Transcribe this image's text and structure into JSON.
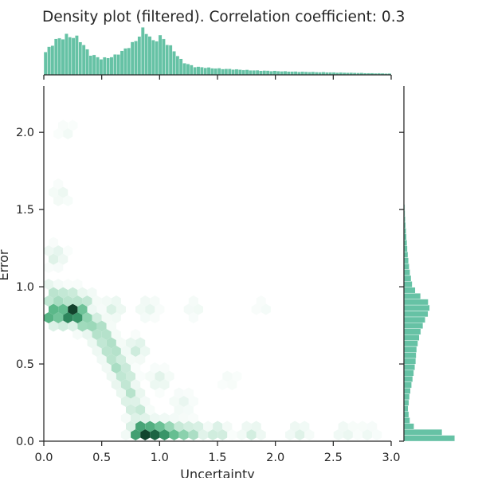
{
  "chart_data": {
    "type": "heatmap",
    "subtype": "hexbin joint plot with marginal histograms",
    "title": "Density plot (filtered). Correlation coefficient: 0.3",
    "xlabel": "Uncertainty",
    "ylabel": "Error",
    "xlim": [
      0.0,
      3.0
    ],
    "ylim": [
      0.0,
      2.3
    ],
    "xticks": [
      0.0,
      0.5,
      1.0,
      1.5,
      2.0,
      2.5,
      3.0
    ],
    "xtick_labels": [
      "0.0",
      "0.5",
      "1.0",
      "1.5",
      "2.0",
      "2.5",
      "3.0"
    ],
    "yticks": [
      0.0,
      0.5,
      1.0,
      1.5,
      2.0
    ],
    "ytick_labels": [
      "0.0",
      "0.5",
      "1.0",
      "1.5",
      "2.0"
    ],
    "grid": false,
    "colormap": [
      "#ffffff",
      "#e8f6ef",
      "#bfe6d2",
      "#8fd3b0",
      "#5cb98a",
      "#2f8a5f",
      "#175a3c",
      "#0a1f14"
    ],
    "bar_color": "#66c2a5",
    "hexbin": [
      {
        "x": 0.0,
        "y": 0.86,
        "v": 0.55
      },
      {
        "x": 0.05,
        "y": 0.82,
        "v": 0.65
      },
      {
        "x": 0.1,
        "y": 0.86,
        "v": 0.6
      },
      {
        "x": 0.1,
        "y": 0.82,
        "v": 0.6
      },
      {
        "x": 0.2,
        "y": 0.82,
        "v": 0.8
      },
      {
        "x": 0.25,
        "y": 0.84,
        "v": 0.95
      },
      {
        "x": 0.3,
        "y": 0.82,
        "v": 0.75
      },
      {
        "x": 0.35,
        "y": 0.78,
        "v": 0.5
      },
      {
        "x": 0.15,
        "y": 0.92,
        "v": 0.4
      },
      {
        "x": 0.05,
        "y": 0.95,
        "v": 0.35
      },
      {
        "x": 0.25,
        "y": 0.92,
        "v": 0.35
      },
      {
        "x": 0.35,
        "y": 0.9,
        "v": 0.3
      },
      {
        "x": 0.45,
        "y": 0.74,
        "v": 0.45
      },
      {
        "x": 0.5,
        "y": 0.68,
        "v": 0.4
      },
      {
        "x": 0.55,
        "y": 0.62,
        "v": 0.4
      },
      {
        "x": 0.6,
        "y": 0.56,
        "v": 0.38
      },
      {
        "x": 0.65,
        "y": 0.48,
        "v": 0.38
      },
      {
        "x": 0.7,
        "y": 0.4,
        "v": 0.35
      },
      {
        "x": 0.75,
        "y": 0.3,
        "v": 0.32
      },
      {
        "x": 0.8,
        "y": 0.2,
        "v": 0.3
      },
      {
        "x": 0.85,
        "y": 0.1,
        "v": 0.3
      },
      {
        "x": 0.85,
        "y": 0.05,
        "v": 1.0
      },
      {
        "x": 0.9,
        "y": 0.05,
        "v": 0.95
      },
      {
        "x": 0.95,
        "y": 0.05,
        "v": 0.85
      },
      {
        "x": 1.0,
        "y": 0.05,
        "v": 0.8
      },
      {
        "x": 1.05,
        "y": 0.05,
        "v": 0.7
      },
      {
        "x": 1.1,
        "y": 0.05,
        "v": 0.6
      },
      {
        "x": 1.2,
        "y": 0.05,
        "v": 0.45
      },
      {
        "x": 1.3,
        "y": 0.05,
        "v": 0.35
      },
      {
        "x": 1.5,
        "y": 0.05,
        "v": 0.28
      },
      {
        "x": 1.8,
        "y": 0.05,
        "v": 0.22
      },
      {
        "x": 2.2,
        "y": 0.05,
        "v": 0.18
      },
      {
        "x": 2.6,
        "y": 0.05,
        "v": 0.14
      },
      {
        "x": 2.8,
        "y": 0.05,
        "v": 0.1
      },
      {
        "x": 0.6,
        "y": 0.86,
        "v": 0.2
      },
      {
        "x": 0.9,
        "y": 0.86,
        "v": 0.15
      },
      {
        "x": 1.3,
        "y": 0.86,
        "v": 0.1
      },
      {
        "x": 1.9,
        "y": 0.86,
        "v": 0.07
      },
      {
        "x": 0.1,
        "y": 1.2,
        "v": 0.2
      },
      {
        "x": 0.15,
        "y": 1.6,
        "v": 0.12
      },
      {
        "x": 0.2,
        "y": 2.0,
        "v": 0.08
      },
      {
        "x": 0.8,
        "y": 0.6,
        "v": 0.25
      },
      {
        "x": 1.0,
        "y": 0.4,
        "v": 0.18
      },
      {
        "x": 1.2,
        "y": 0.25,
        "v": 0.14
      },
      {
        "x": 1.6,
        "y": 0.4,
        "v": 0.07
      }
    ],
    "x_marginal": {
      "x": [
        0.0,
        0.1,
        0.2,
        0.3,
        0.4,
        0.5,
        0.6,
        0.7,
        0.8,
        0.85,
        0.9,
        0.95,
        1.0,
        1.1,
        1.2,
        1.3,
        1.5,
        1.8,
        2.2,
        2.6,
        3.0
      ],
      "v": [
        0.45,
        0.75,
        0.85,
        0.8,
        0.45,
        0.35,
        0.4,
        0.55,
        0.75,
        0.98,
        0.9,
        0.7,
        0.85,
        0.6,
        0.28,
        0.18,
        0.14,
        0.1,
        0.07,
        0.05,
        0.03
      ]
    },
    "y_marginal": {
      "y": [
        0.0,
        0.05,
        0.1,
        0.2,
        0.3,
        0.4,
        0.5,
        0.6,
        0.7,
        0.8,
        0.85,
        0.9,
        0.95,
        1.0,
        1.1,
        1.2,
        1.3,
        1.4,
        1.5
      ],
      "v": [
        0.95,
        0.75,
        0.12,
        0.07,
        0.1,
        0.15,
        0.2,
        0.22,
        0.28,
        0.38,
        0.45,
        0.42,
        0.25,
        0.15,
        0.1,
        0.07,
        0.05,
        0.03,
        0.015
      ]
    }
  }
}
